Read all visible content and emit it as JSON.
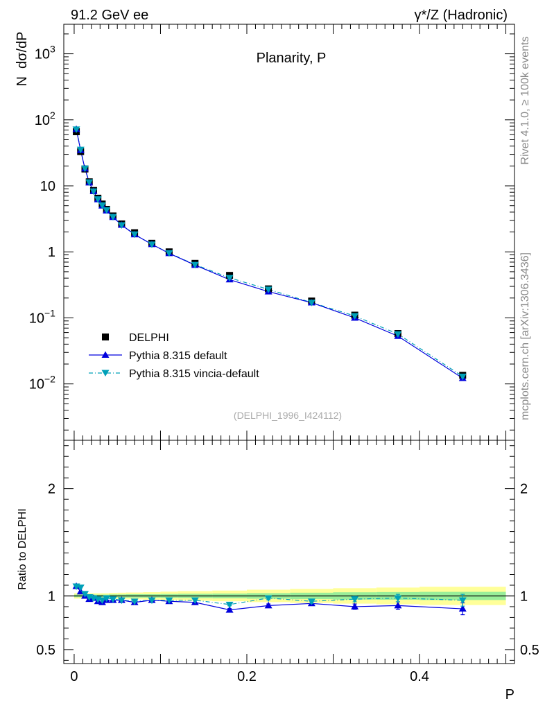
{
  "header": {
    "left": "91.2 GeV ee",
    "right": "γ*/Z (Hadronic)"
  },
  "side_text": {
    "rivet": "Rivet 4.1.0, ≥ 100k events",
    "source": "mcplots.cern.ch [arXiv:1306.3436]"
  },
  "chart_data": [
    {
      "type": "line",
      "title": "Planarity, P",
      "ylabel": "N  dσ/dP",
      "xlabel": "P",
      "yscale": "log",
      "xlim": [
        -0.012,
        0.51
      ],
      "ylim": [
        0.0014,
        2800
      ],
      "annotation": "(DELPHI_1996_I424112)",
      "y_tick_labels": [
        {
          "value": 0.01,
          "base": "10",
          "exp": "−2"
        },
        {
          "value": 0.1,
          "base": "10",
          "exp": "−1"
        },
        {
          "value": 1,
          "text": "1"
        },
        {
          "value": 10,
          "text": "10"
        },
        {
          "value": 100,
          "base": "10",
          "exp": "2"
        },
        {
          "value": 1000,
          "base": "10",
          "exp": "3"
        }
      ],
      "x": [
        0.0025,
        0.0075,
        0.0125,
        0.0175,
        0.0225,
        0.0275,
        0.0325,
        0.0375,
        0.045,
        0.055,
        0.07,
        0.09,
        0.11,
        0.14,
        0.18,
        0.225,
        0.275,
        0.325,
        0.375,
        0.45
      ],
      "series": [
        {
          "name": "DELPHI",
          "style": "square",
          "color": "#000000",
          "values": [
            66,
            33,
            18,
            11.5,
            8.5,
            6.5,
            5.3,
            4.4,
            3.5,
            2.65,
            1.95,
            1.35,
            1.0,
            0.67,
            0.44,
            0.275,
            0.18,
            0.11,
            0.058,
            0.0135
          ]
        },
        {
          "name": "Pythia 8.315 default",
          "style": "triangle-up",
          "color": "#0000dd",
          "values": [
            72,
            34.5,
            18.2,
            11.2,
            8.3,
            6.2,
            5.0,
            4.2,
            3.35,
            2.55,
            1.83,
            1.3,
            0.95,
            0.63,
            0.38,
            0.25,
            0.17,
            0.1,
            0.053,
            0.0122
          ]
        },
        {
          "name": "Pythia 8.315 vincia-default",
          "style": "triangle-down",
          "color": "#00a0b8",
          "values": [
            72,
            35.5,
            18.4,
            11.4,
            8.3,
            6.3,
            5.1,
            4.3,
            3.4,
            2.55,
            1.85,
            1.3,
            0.96,
            0.64,
            0.405,
            0.27,
            0.171,
            0.107,
            0.057,
            0.013
          ]
        }
      ]
    },
    {
      "type": "line",
      "ylabel": "Ratio to DELPHI",
      "xlabel": "P",
      "ylim": [
        0.37,
        2.45
      ],
      "y_tick_labels": [
        "0.5",
        "1",
        "2"
      ],
      "x_tick_labels": [
        "0",
        "0.2",
        "0.4"
      ],
      "reference": 1.0,
      "band_edges": [
        0.0,
        0.005,
        0.01,
        0.015,
        0.02,
        0.025,
        0.03,
        0.035,
        0.04,
        0.05,
        0.06,
        0.08,
        0.1,
        0.12,
        0.16,
        0.2,
        0.25,
        0.3,
        0.35,
        0.4,
        0.5
      ],
      "band_inner": [
        0.012,
        0.012,
        0.012,
        0.012,
        0.012,
        0.012,
        0.012,
        0.012,
        0.014,
        0.014,
        0.016,
        0.016,
        0.018,
        0.02,
        0.022,
        0.026,
        0.03,
        0.034,
        0.036,
        0.038
      ],
      "band_outer": [
        0.025,
        0.025,
        0.025,
        0.025,
        0.025,
        0.025,
        0.025,
        0.025,
        0.028,
        0.03,
        0.032,
        0.035,
        0.04,
        0.045,
        0.05,
        0.058,
        0.065,
        0.072,
        0.078,
        0.085
      ],
      "series": [
        {
          "name": "Pythia 8.315 default",
          "color": "#0000dd",
          "style": "triangle-up",
          "values": [
            1.09,
            1.04,
            1.0,
            0.97,
            0.98,
            0.95,
            0.94,
            0.96,
            0.96,
            0.96,
            0.94,
            0.96,
            0.95,
            0.94,
            0.87,
            0.91,
            0.93,
            0.9,
            0.91,
            0.88
          ],
          "errors": [
            0.005,
            0.005,
            0.005,
            0.005,
            0.005,
            0.005,
            0.005,
            0.005,
            0.005,
            0.005,
            0.006,
            0.007,
            0.008,
            0.01,
            0.012,
            0.015,
            0.018,
            0.025,
            0.035,
            0.055
          ]
        },
        {
          "name": "Pythia 8.315 vincia-default",
          "color": "#00a0b8",
          "style": "triangle-down",
          "values": [
            1.09,
            1.08,
            1.02,
            0.99,
            0.98,
            0.97,
            0.96,
            0.98,
            0.97,
            0.96,
            0.95,
            0.96,
            0.96,
            0.96,
            0.92,
            0.98,
            0.95,
            0.97,
            0.98,
            0.96
          ],
          "errors": [
            0.005,
            0.005,
            0.005,
            0.005,
            0.005,
            0.005,
            0.005,
            0.005,
            0.005,
            0.005,
            0.006,
            0.007,
            0.008,
            0.01,
            0.012,
            0.015,
            0.018,
            0.025,
            0.035,
            0.055
          ]
        }
      ]
    }
  ]
}
